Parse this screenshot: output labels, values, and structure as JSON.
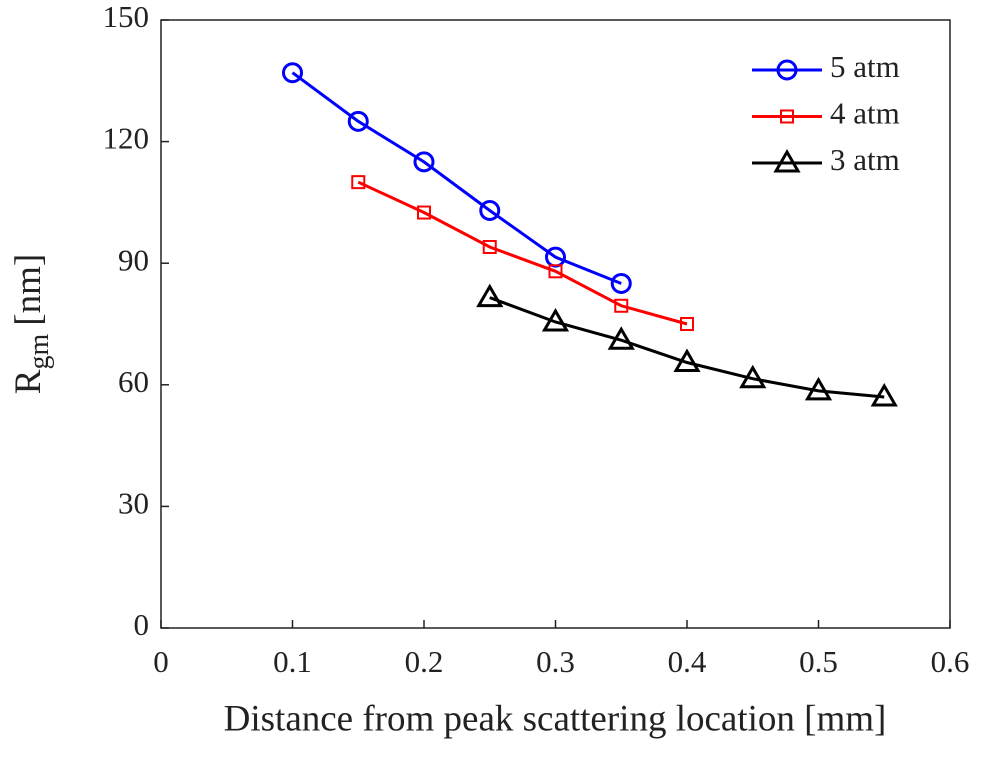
{
  "chart_data": {
    "type": "line",
    "x_label": "Distance from peak scattering location [mm]",
    "y_label": "R",
    "y_label_sub": "gm",
    "y_label_unit": "[nm]",
    "xlim": [
      0,
      0.6
    ],
    "xticks": [
      0,
      0.1,
      0.2,
      0.3,
      0.4,
      0.5,
      0.6
    ],
    "ylim": [
      0,
      150
    ],
    "yticks": [
      0,
      30,
      60,
      90,
      120,
      150
    ],
    "grid": false,
    "legend": "upper right",
    "series": [
      {
        "name": "5 atm",
        "color": "#0000ff",
        "marker": "circle",
        "x": [
          0.1,
          0.15,
          0.2,
          0.25,
          0.3,
          0.35
        ],
        "values": [
          137,
          125,
          115,
          103,
          91.5,
          85
        ]
      },
      {
        "name": "4 atm",
        "color": "#ff0000",
        "marker": "square",
        "x": [
          0.15,
          0.2,
          0.25,
          0.3,
          0.35,
          0.4
        ],
        "values": [
          110,
          102.5,
          94,
          88,
          79.5,
          75
        ]
      },
      {
        "name": "3 atm",
        "color": "#000000",
        "marker": "triangle",
        "x": [
          0.25,
          0.3,
          0.35,
          0.4,
          0.45,
          0.5,
          0.55
        ],
        "values": [
          81.5,
          75.5,
          71,
          65.5,
          61.5,
          58.5,
          57
        ]
      }
    ]
  }
}
